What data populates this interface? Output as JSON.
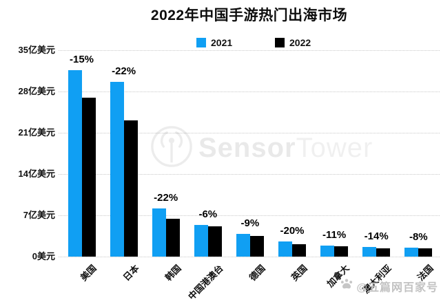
{
  "title": "2022年中国手游热门出海市场",
  "legend": [
    {
      "label": "2021",
      "color": "#109ff3"
    },
    {
      "label": "2022",
      "color": "#000000"
    }
  ],
  "colors": {
    "bar_2021": "#109ff3",
    "bar_2022": "#000000",
    "gridline": "#c8c8c8"
  },
  "y_axis": {
    "tick_labels": [
      "35亿美元",
      "28亿美元",
      "21亿美元",
      "14亿美元",
      "7亿美元",
      "0美元"
    ],
    "tick_values": [
      35,
      28,
      21,
      14,
      7,
      0
    ]
  },
  "watermark_center": {
    "brand_bold": "Sensor",
    "brand_light": "Tower"
  },
  "watermark_corner": {
    "text": "@五篇网百家号"
  },
  "chart_data": {
    "type": "bar",
    "title": "2022年中国手游热门出海市场",
    "categories": [
      "美国",
      "日本",
      "韩国",
      "中国港澳台",
      "德国",
      "英国",
      "加拿大",
      "澳大利亚",
      "法国"
    ],
    "series": [
      {
        "name": "2021",
        "values": [
          31.6,
          29.6,
          8.2,
          5.4,
          3.9,
          2.6,
          1.9,
          1.6,
          1.5
        ]
      },
      {
        "name": "2022",
        "values": [
          26.9,
          23.1,
          6.4,
          5.1,
          3.5,
          2.1,
          1.7,
          1.4,
          1.4
        ]
      }
    ],
    "annotations": [
      "-15%",
      "-22%",
      "-22%",
      "-6%",
      "-9%",
      "-20%",
      "-11%",
      "-14%",
      "-8%"
    ],
    "ylabel_unit": "亿美元",
    "ylim": [
      0,
      35
    ],
    "grid": "horizontal-dotted",
    "legend_position": "top-center"
  }
}
